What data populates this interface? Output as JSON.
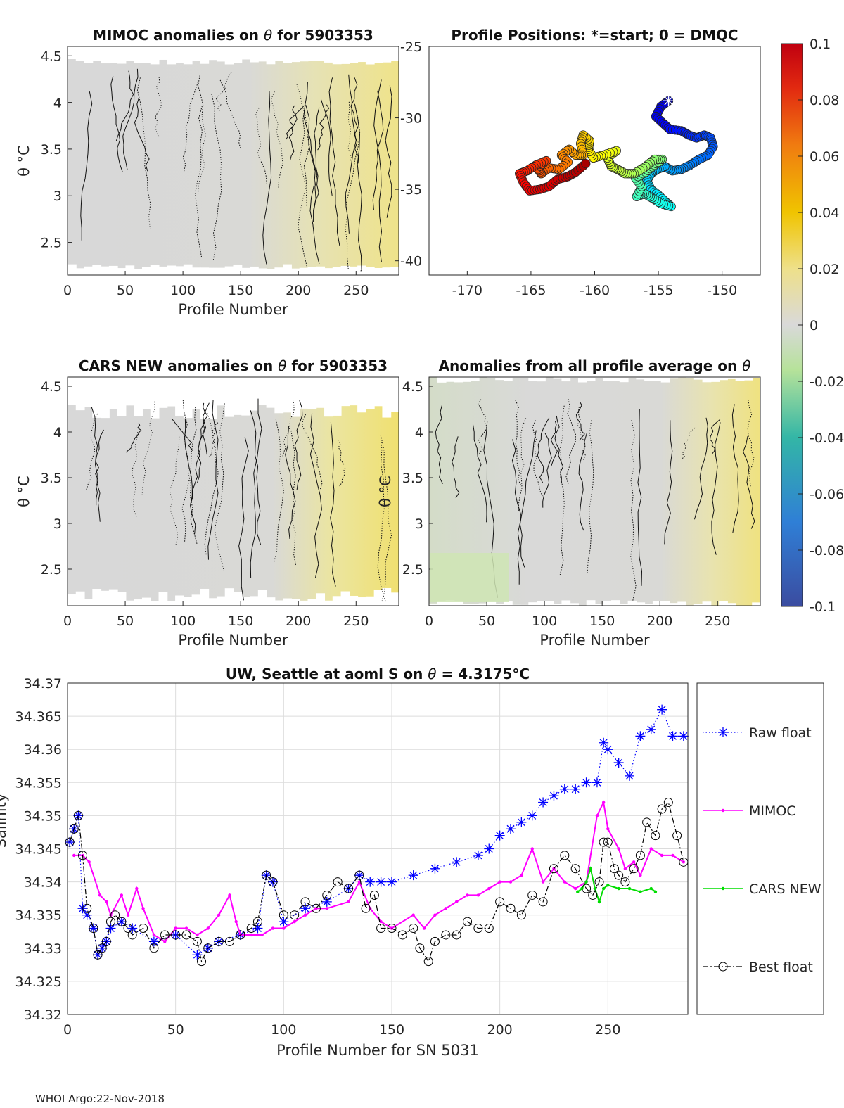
{
  "footer": "WHOI Argo:22-Nov-2018",
  "colors": {
    "raw": "#0000ff",
    "mimoc": "#ff00ff",
    "cars": "#00dd00",
    "best": "#000000"
  },
  "colorbar": {
    "range": [
      -0.1,
      0.1
    ],
    "ticks": [
      "0.1",
      "0.08",
      "0.06",
      "0.04",
      "0.02",
      "0",
      "-0.02",
      "-0.04",
      "-0.06",
      "-0.08",
      "-0.1"
    ]
  },
  "chart_data": [
    {
      "type": "heatmap",
      "title_prefix": "MIMOC anomalies on ",
      "title_suffix": "  for 5903353",
      "xlabel": "Profile Number",
      "ylabel": "θ °C",
      "xlim": [
        0,
        287
      ],
      "ylim": [
        2.15,
        4.6
      ],
      "xticks": [
        "0",
        "50",
        "100",
        "150",
        "200",
        "250"
      ],
      "yticks": [
        "2.5",
        "3",
        "3.5",
        "4",
        "4.5"
      ],
      "yaxis": "left"
    },
    {
      "type": "scatter",
      "title": "Profile Positions: *=start; 0 = DMQC",
      "xlim": [
        -173,
        -147
      ],
      "ylim": [
        -41,
        -25
      ],
      "xticks": [
        "-170",
        "-165",
        "-160",
        "-155",
        "-150"
      ],
      "yticks": [
        "-25",
        "-30",
        "-35",
        "-40"
      ],
      "track": [
        [
          -154.2,
          -28.8
        ],
        [
          -154.8,
          -29.2
        ],
        [
          -155.2,
          -29.9
        ],
        [
          -154.6,
          -30.4
        ],
        [
          -154.1,
          -30.8
        ],
        [
          -153.2,
          -30.9
        ],
        [
          -152.6,
          -31.2
        ],
        [
          -152.0,
          -31.4
        ],
        [
          -151.4,
          -31.2
        ],
        [
          -150.9,
          -31.4
        ],
        [
          -150.7,
          -32.0
        ],
        [
          -151.1,
          -32.6
        ],
        [
          -151.8,
          -32.9
        ],
        [
          -152.5,
          -33.3
        ],
        [
          -153.2,
          -33.6
        ],
        [
          -153.9,
          -33.7
        ],
        [
          -154.5,
          -33.4
        ],
        [
          -155.1,
          -33.6
        ],
        [
          -155.6,
          -33.9
        ],
        [
          -155.9,
          -34.4
        ],
        [
          -155.6,
          -35.0
        ],
        [
          -155.0,
          -35.4
        ],
        [
          -154.4,
          -35.9
        ],
        [
          -154.0,
          -36.2
        ],
        [
          -154.8,
          -36.0
        ],
        [
          -155.5,
          -35.6
        ],
        [
          -156.1,
          -35.3
        ],
        [
          -156.7,
          -35.5
        ],
        [
          -156.3,
          -34.8
        ],
        [
          -156.8,
          -34.2
        ],
        [
          -156.0,
          -33.8
        ],
        [
          -155.3,
          -33.3
        ],
        [
          -154.7,
          -32.9
        ],
        [
          -155.3,
          -32.9
        ],
        [
          -156.0,
          -33.4
        ],
        [
          -156.9,
          -33.9
        ],
        [
          -157.6,
          -33.9
        ],
        [
          -158.2,
          -33.6
        ],
        [
          -158.7,
          -33.4
        ],
        [
          -159.0,
          -32.8
        ],
        [
          -158.3,
          -32.3
        ],
        [
          -159.3,
          -32.6
        ],
        [
          -160.1,
          -32.8
        ],
        [
          -160.5,
          -32.2
        ],
        [
          -160.4,
          -31.6
        ],
        [
          -160.9,
          -31.2
        ],
        [
          -161.1,
          -31.8
        ],
        [
          -160.9,
          -32.6
        ],
        [
          -161.5,
          -32.6
        ],
        [
          -162.0,
          -32.2
        ],
        [
          -162.6,
          -32.6
        ],
        [
          -162.1,
          -33.1
        ],
        [
          -162.8,
          -33.6
        ],
        [
          -163.6,
          -33.5
        ],
        [
          -164.2,
          -33.9
        ],
        [
          -164.5,
          -33.5
        ],
        [
          -163.8,
          -33.0
        ],
        [
          -164.6,
          -33.3
        ],
        [
          -165.3,
          -33.7
        ],
        [
          -165.9,
          -33.9
        ],
        [
          -165.6,
          -34.5
        ],
        [
          -165.1,
          -35.1
        ],
        [
          -164.3,
          -35.0
        ],
        [
          -163.6,
          -34.8
        ],
        [
          -162.9,
          -34.3
        ],
        [
          -162.1,
          -34.1
        ],
        [
          -161.5,
          -33.8
        ],
        [
          -160.7,
          -33.2
        ]
      ]
    },
    {
      "type": "heatmap",
      "title_prefix": "CARS NEW anomalies on ",
      "title_suffix": " for 5903353",
      "xlabel": "Profile Number",
      "ylabel": "θ °C",
      "xlim": [
        0,
        287
      ],
      "ylim": [
        2.1,
        4.6
      ],
      "xticks": [
        "0",
        "50",
        "100",
        "150",
        "200",
        "250"
      ],
      "yticks": [
        "2.5",
        "3",
        "3.5",
        "4",
        "4.5"
      ],
      "yaxis": "left"
    },
    {
      "type": "heatmap",
      "title_prefix": "Anomalies from all profile average on ",
      "title_suffix": "",
      "xlabel": "Profile Number",
      "ylabel": "θ °C",
      "xlim": [
        0,
        287
      ],
      "ylim": [
        2.1,
        4.6
      ],
      "xticks": [
        "0",
        "50",
        "100",
        "150",
        "200",
        "250"
      ],
      "yticks": [
        "2.5",
        "3",
        "3.5",
        "4",
        "4.5"
      ],
      "yaxis": "left"
    },
    {
      "type": "line",
      "title_prefix": "UW, Seattle at aoml S on ",
      "title_suffix": " = 4.3175",
      "title_unit": "°C",
      "xlabel": "Profile Number for SN 5031",
      "ylabel": "Salinity",
      "xlim": [
        0,
        287
      ],
      "ylim": [
        34.32,
        34.37
      ],
      "xticks": [
        "0",
        "50",
        "100",
        "150",
        "200",
        "250"
      ],
      "yticks": [
        "34.32",
        "34.325",
        "34.33",
        "34.335",
        "34.34",
        "34.345",
        "34.35",
        "34.355",
        "34.36",
        "34.365",
        "34.37"
      ],
      "grid": true,
      "legend": [
        "Raw float",
        "MIMOC",
        "CARS NEW",
        "Best float"
      ],
      "series": [
        {
          "name": "Raw float",
          "x": [
            1,
            3,
            5,
            7,
            9,
            12,
            14,
            16,
            18,
            20,
            25,
            30,
            40,
            50,
            60,
            65,
            70,
            80,
            88,
            92,
            95,
            100,
            110,
            120,
            130,
            135,
            140,
            145,
            150,
            160,
            170,
            180,
            190,
            195,
            200,
            205,
            210,
            215,
            220,
            225,
            230,
            235,
            240,
            245,
            248,
            250,
            255,
            260,
            265,
            270,
            275,
            280,
            285
          ],
          "values": [
            34.346,
            34.348,
            34.35,
            34.336,
            34.335,
            34.333,
            34.329,
            34.33,
            34.331,
            34.333,
            34.334,
            34.333,
            34.331,
            34.332,
            34.329,
            34.33,
            34.331,
            34.332,
            34.333,
            34.341,
            34.34,
            34.334,
            34.336,
            34.337,
            34.339,
            34.341,
            34.34,
            34.34,
            34.34,
            34.341,
            34.342,
            34.343,
            34.344,
            34.345,
            34.347,
            34.348,
            34.349,
            34.35,
            34.352,
            34.353,
            34.354,
            34.354,
            34.355,
            34.355,
            34.361,
            34.36,
            34.358,
            34.356,
            34.362,
            34.363,
            34.366,
            34.362,
            34.362
          ]
        },
        {
          "name": "MIMOC",
          "x": [
            3,
            7,
            10,
            15,
            18,
            20,
            25,
            28,
            32,
            35,
            40,
            45,
            50,
            55,
            60,
            65,
            70,
            75,
            78,
            80,
            85,
            90,
            95,
            100,
            105,
            110,
            115,
            120,
            130,
            135,
            140,
            145,
            150,
            160,
            165,
            170,
            175,
            180,
            185,
            190,
            195,
            200,
            205,
            210,
            215,
            220,
            225,
            230,
            235,
            240,
            245,
            248,
            250,
            255,
            258,
            262,
            265,
            270,
            275,
            280,
            285
          ],
          "values": [
            34.344,
            34.344,
            34.343,
            34.338,
            34.337,
            34.335,
            34.338,
            34.335,
            34.339,
            34.336,
            34.332,
            34.331,
            34.333,
            34.333,
            34.332,
            34.333,
            34.335,
            34.338,
            34.334,
            34.332,
            34.332,
            34.332,
            34.333,
            34.333,
            34.334,
            34.335,
            34.336,
            34.336,
            34.337,
            34.34,
            34.336,
            34.334,
            34.333,
            34.335,
            34.333,
            34.335,
            34.336,
            34.337,
            34.338,
            34.338,
            34.339,
            34.34,
            34.34,
            34.341,
            34.345,
            34.34,
            34.342,
            34.34,
            34.339,
            34.34,
            34.35,
            34.352,
            34.348,
            34.345,
            34.342,
            34.343,
            34.341,
            34.345,
            34.344,
            34.344,
            34.343
          ]
        },
        {
          "name": "CARS NEW",
          "x": [
            236,
            238,
            240,
            242,
            244,
            246,
            248,
            250,
            255,
            260,
            265,
            270,
            272
          ],
          "values": [
            34.3385,
            34.339,
            34.34,
            34.342,
            34.339,
            34.337,
            34.339,
            34.3395,
            34.339,
            34.339,
            34.3385,
            34.339,
            34.3385
          ]
        },
        {
          "name": "Best float",
          "x": [
            1,
            3,
            5,
            7,
            9,
            12,
            14,
            16,
            18,
            20,
            22,
            25,
            28,
            30,
            35,
            40,
            45,
            50,
            55,
            60,
            62,
            65,
            70,
            75,
            80,
            85,
            88,
            92,
            95,
            100,
            105,
            110,
            115,
            120,
            125,
            130,
            135,
            138,
            142,
            145,
            150,
            155,
            160,
            163,
            167,
            170,
            175,
            180,
            185,
            190,
            195,
            200,
            205,
            210,
            215,
            220,
            225,
            230,
            235,
            240,
            243,
            246,
            248,
            250,
            253,
            255,
            258,
            262,
            265,
            268,
            272,
            275,
            278,
            282,
            285
          ],
          "values": [
            34.346,
            34.348,
            34.35,
            34.344,
            34.336,
            34.333,
            34.329,
            34.33,
            34.331,
            34.334,
            34.335,
            34.334,
            34.333,
            34.332,
            34.333,
            34.33,
            34.332,
            34.332,
            34.332,
            34.331,
            34.328,
            34.33,
            34.331,
            34.331,
            34.332,
            34.333,
            34.334,
            34.341,
            34.34,
            34.335,
            34.335,
            34.337,
            34.336,
            34.338,
            34.34,
            34.339,
            34.341,
            34.336,
            34.338,
            34.333,
            34.333,
            34.332,
            34.333,
            34.33,
            34.328,
            34.331,
            34.332,
            34.332,
            34.334,
            34.333,
            34.333,
            34.337,
            34.336,
            34.335,
            34.338,
            34.337,
            34.342,
            34.344,
            34.342,
            34.339,
            34.338,
            34.34,
            34.346,
            34.346,
            34.342,
            34.341,
            34.34,
            34.342,
            34.344,
            34.349,
            34.347,
            34.351,
            34.352,
            34.347,
            34.343
          ]
        }
      ]
    }
  ]
}
